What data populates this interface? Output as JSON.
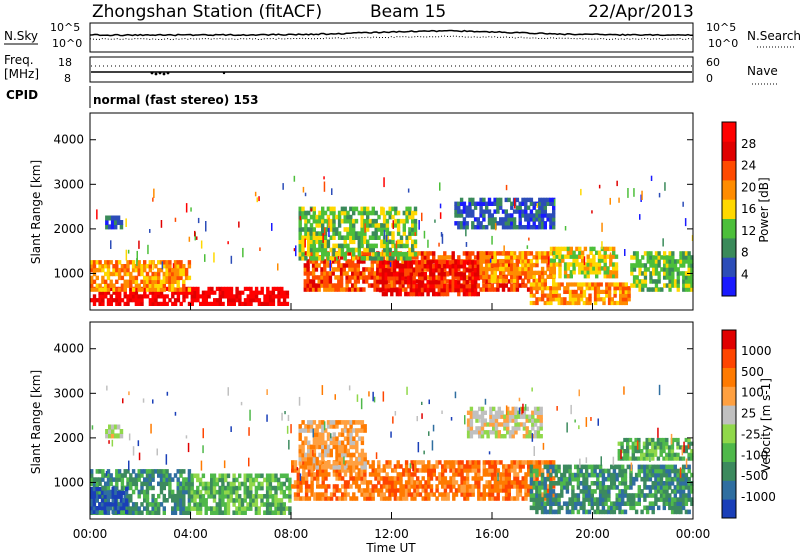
{
  "header": {
    "station": "Zhongshan Station (fitACF)",
    "beam": "Beam 15",
    "date": "22/Apr/2013"
  },
  "nsky_panel": {
    "left_label": "N.Sky",
    "left_ticks": [
      "10^5",
      "10^0"
    ],
    "right_label": "N.Search",
    "right_ticks": [
      "10^5",
      "10^0"
    ]
  },
  "freq_panel": {
    "left_label_1": "Freq.",
    "left_label_2": "[MHz]",
    "left_ticks": [
      "18",
      "8"
    ],
    "right_label": "Nave",
    "right_ticks": [
      "60",
      "0"
    ]
  },
  "cpid_panel": {
    "label": "CPID",
    "mode": "normal (fast stereo) 153"
  },
  "time_axis": {
    "title": "Time UT",
    "ticks": [
      "00:00",
      "04:00",
      "08:00",
      "12:00",
      "16:00",
      "20:00",
      "00:00"
    ]
  },
  "chart_data": [
    {
      "type": "heatmap",
      "panel": "power",
      "ylabel": "Slant Range [km]",
      "yticks": [
        1000,
        2000,
        3000,
        4000
      ],
      "ylim": [
        180,
        4600
      ],
      "xlim_hours": [
        0,
        24
      ],
      "colorbar_label": "Power [dB]",
      "colorbar_ticks": [
        "28",
        "24",
        "20",
        "16",
        "12",
        "8",
        "4"
      ],
      "colors": [
        "#1a1aff",
        "#2c4db8",
        "#3a8a5a",
        "#4cbf3a",
        "#ffd800",
        "#ff8c00",
        "#ff4a00",
        "#e00000",
        "#ff0000"
      ],
      "regions": [
        {
          "t0": 0.0,
          "t1": 7.9,
          "r0": 280,
          "r1": 700,
          "level": 8
        },
        {
          "t0": 0.0,
          "t1": 4.0,
          "r0": 600,
          "r1": 1300,
          "level": 5
        },
        {
          "t0": 0.6,
          "t1": 1.3,
          "r0": 2000,
          "r1": 2300,
          "level": 1
        },
        {
          "t0": 8.5,
          "t1": 17.5,
          "r0": 600,
          "r1": 1500,
          "level": 6
        },
        {
          "t0": 11.5,
          "t1": 15.5,
          "r0": 500,
          "r1": 1300,
          "level": 7
        },
        {
          "t0": 15.5,
          "t1": 18.5,
          "r0": 800,
          "r1": 1500,
          "level": 5
        },
        {
          "t0": 8.3,
          "t1": 13.0,
          "r0": 1300,
          "r1": 2500,
          "level": 3
        },
        {
          "t0": 14.5,
          "t1": 18.5,
          "r0": 2000,
          "r1": 2700,
          "level": 1
        },
        {
          "t0": 17.5,
          "t1": 21.5,
          "r0": 300,
          "r1": 800,
          "level": 5
        },
        {
          "t0": 18.3,
          "t1": 21.0,
          "r0": 900,
          "r1": 1600,
          "level": 4
        },
        {
          "t0": 21.5,
          "t1": 24.0,
          "r0": 600,
          "r1": 1500,
          "level": 3
        }
      ]
    },
    {
      "type": "heatmap",
      "panel": "velocity",
      "ylabel": "Slant Range [km]",
      "yticks": [
        1000,
        2000,
        3000,
        4000
      ],
      "ylim": [
        180,
        4600
      ],
      "xlim_hours": [
        0,
        24
      ],
      "colorbar_label": "Velocity [m s-1]",
      "colorbar_ticks": [
        "1000",
        "500",
        "100",
        "25",
        "-25",
        "-100",
        "-500",
        "-1000"
      ],
      "colors": [
        "#1a3fb8",
        "#2f6ea0",
        "#3c8a5e",
        "#4fb84a",
        "#90d84a",
        "#c0c0c0",
        "#ffa040",
        "#ff7a00",
        "#ff4500",
        "#e00000"
      ],
      "regions": [
        {
          "t0": 0.0,
          "t1": 4.0,
          "r0": 280,
          "r1": 1300,
          "level": 2
        },
        {
          "t0": 0.0,
          "t1": 1.5,
          "r0": 300,
          "r1": 900,
          "level": 0
        },
        {
          "t0": 0.6,
          "t1": 1.3,
          "r0": 2000,
          "r1": 2300,
          "level": 5
        },
        {
          "t0": 4.0,
          "t1": 8.0,
          "r0": 280,
          "r1": 1200,
          "level": 3
        },
        {
          "t0": 8.0,
          "t1": 18.5,
          "r0": 600,
          "r1": 1500,
          "level": 7
        },
        {
          "t0": 8.3,
          "t1": 11.0,
          "r0": 1300,
          "r1": 2400,
          "level": 6
        },
        {
          "t0": 15.0,
          "t1": 18.0,
          "r0": 2000,
          "r1": 2700,
          "level": 5
        },
        {
          "t0": 17.5,
          "t1": 24.0,
          "r0": 300,
          "r1": 1400,
          "level": 2
        },
        {
          "t0": 21.0,
          "t1": 24.0,
          "r0": 1500,
          "r1": 2000,
          "level": 3
        }
      ]
    }
  ]
}
